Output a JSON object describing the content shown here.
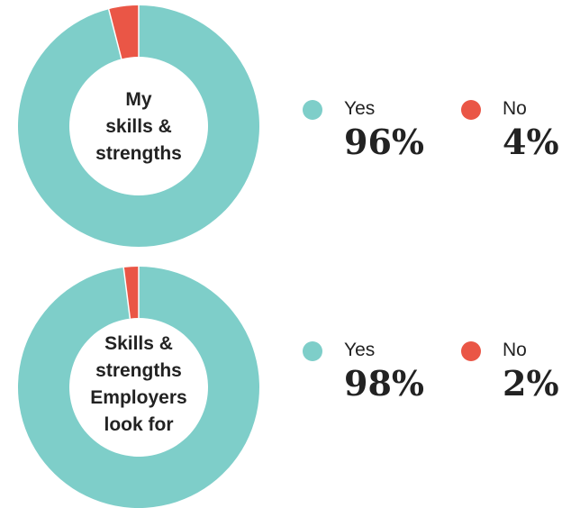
{
  "colors": {
    "yes": "#7ecec9",
    "no": "#ea5646",
    "hole": "#ffffff"
  },
  "chart_data": [
    {
      "type": "pie",
      "style": "donut",
      "center_label_lines": [
        "My",
        "skills &",
        "strengths"
      ],
      "categories": [
        "Yes",
        "No"
      ],
      "values": [
        96,
        4
      ],
      "value_labels": [
        "96%",
        "4%"
      ],
      "legend": "right"
    },
    {
      "type": "pie",
      "style": "donut",
      "center_label_lines": [
        "Skills &",
        "strengths",
        "Employers",
        "look for"
      ],
      "categories": [
        "Yes",
        "No"
      ],
      "values": [
        98,
        2
      ],
      "value_labels": [
        "98%",
        "2%"
      ],
      "legend": "right"
    }
  ]
}
